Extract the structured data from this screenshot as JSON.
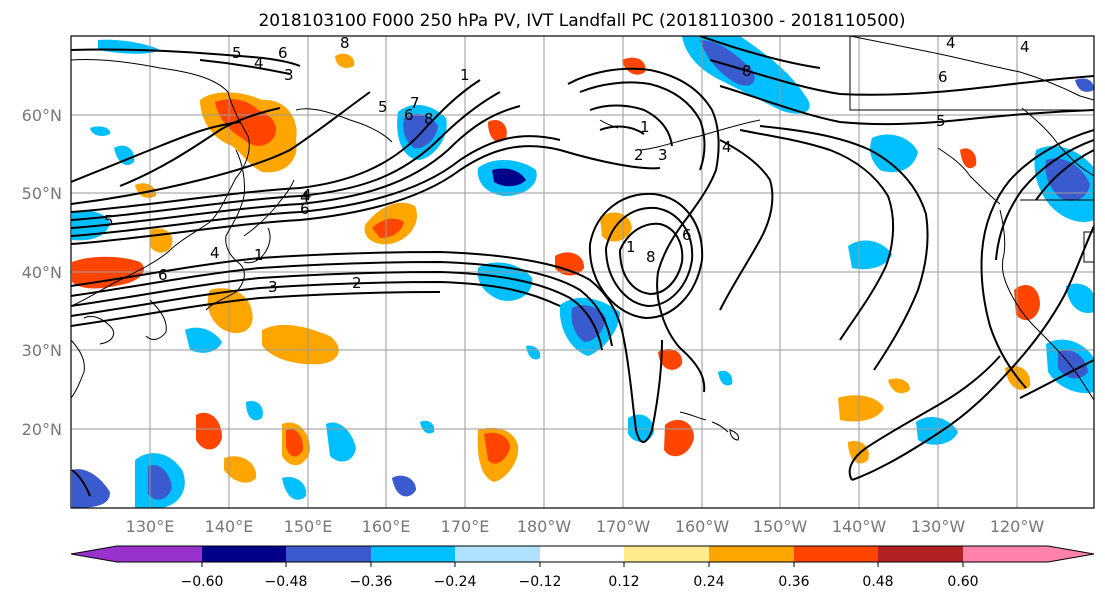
{
  "title": "2018103100 F000 250 hPa PV, IVT Landfall PC (2018110300 - 2018110500)",
  "lat_labels": [
    "60°N",
    "50°N",
    "40°N",
    "30°N",
    "20°N"
  ],
  "lon_labels": [
    "130°E",
    "140°E",
    "150°E",
    "160°E",
    "170°E",
    "180°W",
    "170°W",
    "160°W",
    "150°W",
    "140°W",
    "130°W",
    "120°W"
  ],
  "colorbar": {
    "colors": [
      "#9932cc",
      "#00008b",
      "#3a5bcd",
      "#00bfff",
      "#b0e2ff",
      "#ffffff",
      "#ffeb8b",
      "#ffa500",
      "#ff4500",
      "#b22222",
      "#ff82ab"
    ],
    "tick_labels": [
      "-0.60",
      "-0.48",
      "-0.36",
      "-0.24",
      "-0.12",
      "0.12",
      "0.24",
      "0.36",
      "0.48",
      "0.60"
    ]
  },
  "contour_labels": [
    "5",
    "6",
    "8",
    "4",
    "3",
    "5",
    "6",
    "7",
    "4",
    "8",
    "1",
    "1",
    "2",
    "3",
    "4",
    "5",
    "6",
    "4",
    "1",
    "6",
    "4",
    "3",
    "2",
    "6",
    "1",
    "8",
    "8",
    "4",
    "4",
    "5",
    "6"
  ]
}
